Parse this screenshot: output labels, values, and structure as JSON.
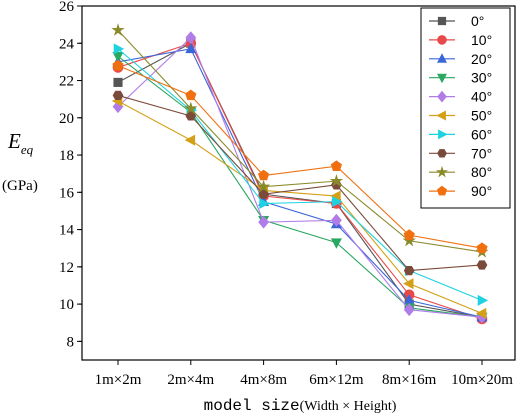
{
  "chart_data": {
    "type": "line",
    "categories": [
      "1m×2m",
      "2m×4m",
      "4m×8m",
      "6m×12m",
      "8m×16m",
      "10m×20m"
    ],
    "xlabel_main": "model size",
    "xlabel_paren": "(Width × Height)",
    "ylabel": "E",
    "ylabel_sub": "eq",
    "yunit": "(GPa)",
    "ylim": [
      7,
      26
    ],
    "yticks": [
      8,
      10,
      12,
      14,
      16,
      18,
      20,
      22,
      24,
      26
    ],
    "legend_position": "top-right",
    "series": [
      {
        "name": "0°",
        "color": "#555555",
        "marker": "square",
        "values": [
          21.9,
          24.0,
          15.9,
          15.4,
          10.0,
          9.3
        ]
      },
      {
        "name": "10°",
        "color": "#e84848",
        "marker": "circle",
        "values": [
          22.7,
          24.0,
          15.8,
          15.4,
          10.5,
          9.2
        ]
      },
      {
        "name": "20°",
        "color": "#3a66d8",
        "marker": "triangle-up",
        "values": [
          23.0,
          23.7,
          15.5,
          14.3,
          10.2,
          9.3
        ]
      },
      {
        "name": "30°",
        "color": "#2aa860",
        "marker": "triangle-down",
        "values": [
          23.3,
          20.3,
          14.5,
          13.3,
          9.8,
          9.3
        ]
      },
      {
        "name": "40°",
        "color": "#b07ce8",
        "marker": "diamond",
        "values": [
          20.6,
          24.3,
          14.4,
          14.5,
          9.7,
          9.3
        ]
      },
      {
        "name": "50°",
        "color": "#d4a018",
        "marker": "triangle-left",
        "values": [
          20.9,
          18.8,
          16.1,
          15.8,
          11.1,
          9.5
        ]
      },
      {
        "name": "60°",
        "color": "#1ed2e0",
        "marker": "triangle-right",
        "values": [
          23.7,
          20.4,
          15.4,
          15.5,
          11.8,
          10.2
        ]
      },
      {
        "name": "70°",
        "color": "#7a4a3a",
        "marker": "hexagon",
        "values": [
          21.2,
          20.1,
          15.9,
          16.4,
          11.8,
          12.1
        ]
      },
      {
        "name": "80°",
        "color": "#8a8a2a",
        "marker": "star",
        "values": [
          24.7,
          20.5,
          16.3,
          16.6,
          13.4,
          12.8
        ]
      },
      {
        "name": "90°",
        "color": "#f07010",
        "marker": "pentagon",
        "values": [
          22.8,
          21.2,
          16.9,
          17.4,
          13.7,
          13.0
        ]
      }
    ]
  }
}
